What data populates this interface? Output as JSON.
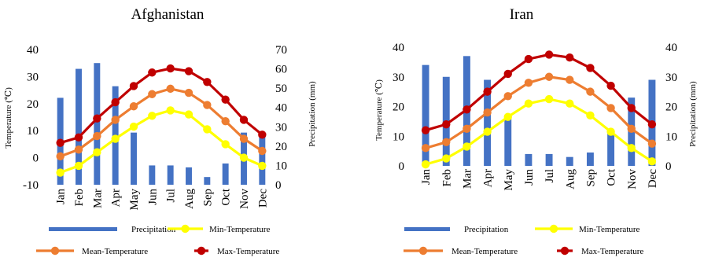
{
  "chart_data": [
    {
      "type": "bar+line",
      "title": "Afghanistan",
      "categories": [
        "Jan",
        "Feb",
        "Mar",
        "Apr",
        "May",
        "Jun",
        "Jul",
        "Aug",
        "Sep",
        "Oct",
        "Nov",
        "Dec"
      ],
      "ylabel": "Temperature (℃)",
      "y2label": "Precipitation (mm)",
      "ylim": [
        -10,
        40
      ],
      "yticks": [
        -10,
        0,
        10,
        20,
        30,
        40
      ],
      "y2lim": [
        0,
        70
      ],
      "y2ticks": [
        0,
        10,
        20,
        30,
        40,
        50,
        60,
        70
      ],
      "legend_position": "bottom",
      "bar_series": {
        "name": "Precipitation",
        "axis": "right",
        "color": "#4472C4",
        "values": [
          45,
          60,
          63,
          51,
          27,
          10,
          10,
          9,
          4,
          11,
          27,
          26
        ]
      },
      "line_series": [
        {
          "name": "Min-Temperature",
          "color": "#FFFF00",
          "values": [
            -5.5,
            -3,
            2,
            7,
            11.5,
            15.5,
            17.5,
            16,
            10.5,
            5,
            0,
            -3
          ]
        },
        {
          "name": "Mean-Temperature",
          "color": "#ED7D31",
          "values": [
            0.5,
            3,
            8,
            14,
            19,
            23.5,
            25.5,
            24,
            19.5,
            13.5,
            7,
            2.5
          ]
        },
        {
          "name": "Max-Temperature",
          "color": "#C00000",
          "values": [
            5.5,
            7.5,
            14.5,
            20.5,
            26.5,
            31.5,
            33,
            32,
            28,
            21.5,
            14,
            8.5
          ]
        }
      ]
    },
    {
      "type": "bar+line",
      "title": "Iran",
      "categories": [
        "Jan",
        "Feb",
        "Mar",
        "Apr",
        "May",
        "Jun",
        "Jul",
        "Aug",
        "Sep",
        "Oct",
        "Nov",
        "Dec"
      ],
      "ylabel": "Temperature (℃)",
      "y2label": "Precipitation (mm)",
      "ylim": [
        0,
        40
      ],
      "yticks": [
        0,
        10,
        20,
        30,
        40
      ],
      "y2lim": [
        0,
        40
      ],
      "y2ticks": [
        0,
        10,
        20,
        30,
        40
      ],
      "legend_position": "bottom",
      "bar_series": {
        "name": "Precipitation",
        "axis": "right",
        "color": "#4472C4",
        "values": [
          34,
          30,
          37,
          29,
          16,
          4,
          4,
          3,
          4.5,
          11,
          23,
          29
        ]
      },
      "line_series": [
        {
          "name": "Min-Temperature",
          "color": "#FFFF00",
          "values": [
            0.5,
            2.5,
            6.5,
            11.5,
            16.5,
            21,
            22.5,
            21,
            17,
            11.5,
            6,
            1.5
          ]
        },
        {
          "name": "Mean-Temperature",
          "color": "#ED7D31",
          "values": [
            6,
            8,
            12.5,
            18,
            23.5,
            28,
            30,
            29,
            25,
            19.5,
            12.5,
            7.5
          ]
        },
        {
          "name": "Max-Temperature",
          "color": "#C00000",
          "values": [
            12,
            14,
            19,
            25,
            31,
            36,
            37.5,
            36.5,
            33,
            27,
            19.5,
            14
          ]
        }
      ]
    }
  ]
}
